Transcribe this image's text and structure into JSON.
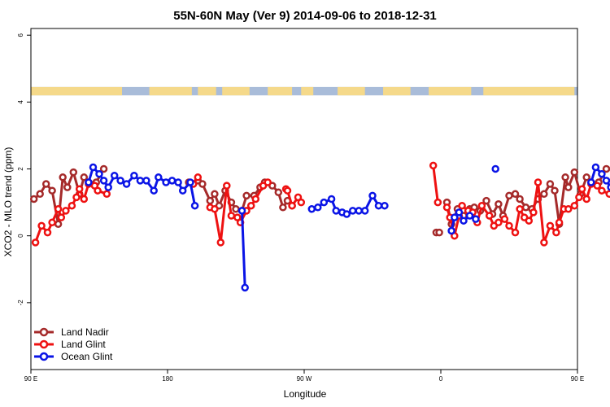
{
  "chart_data": {
    "type": "line",
    "title": "55N-60N May (Ver 9)   2014-09-06 to 2018-12-31",
    "xlabel": "Longitude",
    "ylabel": "XCO2 - MLO trend (ppm)",
    "xlim": [
      90,
      450
    ],
    "ylim": [
      -4,
      6.2
    ],
    "x_ticks": [
      {
        "value": 90,
        "label": "90 E"
      },
      {
        "value": 180,
        "label": "180"
      },
      {
        "value": 270,
        "label": "90 W"
      },
      {
        "value": 360,
        "label": "0"
      },
      {
        "value": 450,
        "label": "90 E"
      },
      {
        "value": 540,
        "label": "180"
      }
    ],
    "y_ticks": [
      {
        "value": -2,
        "label": "-2"
      },
      {
        "value": 0,
        "label": "0"
      },
      {
        "value": 2,
        "label": "2"
      },
      {
        "value": 4,
        "label": "4"
      },
      {
        "value": 6,
        "label": "6"
      }
    ],
    "grid": false,
    "legend_position": "bottom-left",
    "land_mask_band": {
      "y_range": [
        4.2,
        4.45
      ],
      "ocean_color": "#A9BCD9",
      "land_color": "#F5D98A"
    },
    "series": [
      {
        "name": "Land Nadir",
        "color": "#A52A2A",
        "segments": [
          [
            [
              92,
              1.1
            ],
            [
              96,
              1.25
            ],
            [
              100,
              1.55
            ],
            [
              104,
              1.35
            ],
            [
              108,
              0.35
            ],
            [
              111,
              1.75
            ],
            [
              114,
              1.45
            ],
            [
              118,
              1.9
            ],
            [
              122,
              1.25
            ],
            [
              125,
              1.75
            ],
            [
              128,
              1.6
            ],
            [
              133,
              1.6
            ],
            [
              138,
              2.0
            ]
          ],
          [
            [
              194,
              1.6
            ],
            [
              200,
              1.65
            ],
            [
              203,
              1.55
            ],
            [
              208,
              1.05
            ],
            [
              211,
              1.25
            ],
            [
              214,
              0.9
            ],
            [
              218,
              1.35
            ],
            [
              222,
              1.0
            ],
            [
              225,
              0.8
            ],
            [
              229,
              0.75
            ],
            [
              232,
              1.2
            ],
            [
              237,
              1.2
            ],
            [
              241,
              1.45
            ],
            [
              244,
              1.6
            ]
          ],
          [
            [
              249,
              1.5
            ],
            [
              253,
              1.3
            ],
            [
              256,
              0.85
            ],
            [
              259,
              1.05
            ],
            [
              262,
              0.9
            ]
          ],
          [
            [
              357,
              0.1
            ],
            [
              359,
              0.1
            ]
          ],
          [
            [
              364,
              1.0
            ],
            [
              367,
              0.35
            ],
            [
              371,
              0.8
            ],
            [
              375,
              0.6
            ],
            [
              379,
              0.8
            ],
            [
              382,
              0.85
            ],
            [
              386,
              0.75
            ],
            [
              390,
              1.05
            ],
            [
              394,
              0.65
            ],
            [
              398,
              0.95
            ],
            [
              401,
              0.6
            ],
            [
              405,
              1.2
            ],
            [
              409,
              1.25
            ],
            [
              412,
              1.1
            ],
            [
              416,
              0.85
            ],
            [
              420,
              0.8
            ],
            [
              424,
              1.1
            ],
            [
              428,
              1.25
            ],
            [
              432,
              1.55
            ],
            [
              435,
              1.35
            ],
            [
              438,
              0.35
            ],
            [
              442,
              1.75
            ],
            [
              444,
              1.45
            ],
            [
              448,
              1.9
            ],
            [
              452,
              1.25
            ],
            [
              456,
              1.75
            ],
            [
              459,
              1.6
            ],
            [
              464,
              1.6
            ],
            [
              469,
              2.0
            ]
          ]
        ]
      },
      {
        "name": "Land Glint",
        "color": "#EE1111",
        "segments": [
          [
            [
              93,
              -0.2
            ],
            [
              97,
              0.3
            ],
            [
              101,
              0.1
            ],
            [
              104,
              0.4
            ],
            [
              108,
              0.8
            ],
            [
              110,
              0.55
            ],
            [
              113,
              0.75
            ],
            [
              117,
              0.9
            ],
            [
              120,
              1.15
            ],
            [
              122,
              1.4
            ],
            [
              125,
              1.1
            ],
            [
              128,
              1.55
            ],
            [
              132,
              1.5
            ],
            [
              134,
              1.35
            ],
            [
              140,
              1.25
            ]
          ],
          [
            [
              197,
              1.55
            ],
            [
              200,
              1.75
            ]
          ],
          [
            [
              208,
              0.85
            ],
            [
              211,
              0.8
            ],
            [
              215,
              -0.2
            ],
            [
              219,
              1.5
            ],
            [
              222,
              0.6
            ],
            [
              226,
              0.55
            ],
            [
              228,
              0.4
            ],
            [
              232,
              0.75
            ],
            [
              235,
              0.9
            ],
            [
              238,
              1.1
            ],
            [
              243,
              1.5
            ],
            [
              246,
              1.6
            ]
          ],
          [
            [
              258,
              1.4
            ],
            [
              259,
              1.35
            ],
            [
              262,
              0.9
            ],
            [
              266,
              1.15
            ],
            [
              268,
              1.0
            ]
          ],
          [
            [
              355,
              2.1
            ],
            [
              358,
              1.0
            ]
          ],
          [
            [
              364,
              0.85
            ],
            [
              366,
              0.55
            ],
            [
              369,
              0.0
            ],
            [
              372,
              0.6
            ],
            [
              374,
              0.9
            ],
            [
              378,
              0.75
            ],
            [
              381,
              0.7
            ],
            [
              384,
              0.4
            ],
            [
              387,
              0.9
            ],
            [
              392,
              0.6
            ],
            [
              395,
              0.3
            ],
            [
              398,
              0.4
            ],
            [
              402,
              0.5
            ],
            [
              405,
              0.3
            ],
            [
              409,
              0.1
            ],
            [
              412,
              0.8
            ],
            [
              415,
              0.55
            ],
            [
              418,
              0.45
            ],
            [
              421,
              0.7
            ],
            [
              424,
              1.6
            ],
            [
              428,
              -0.2
            ],
            [
              432,
              0.3
            ],
            [
              436,
              0.1
            ],
            [
              438,
              0.4
            ],
            [
              441,
              0.8
            ],
            [
              444,
              0.8
            ],
            [
              448,
              0.9
            ],
            [
              451,
              1.15
            ],
            [
              453,
              1.4
            ],
            [
              456,
              1.1
            ],
            [
              459,
              1.55
            ],
            [
              463,
              1.5
            ],
            [
              466,
              1.35
            ],
            [
              471,
              1.25
            ]
          ]
        ]
      },
      {
        "name": "Ocean Glint",
        "color": "#0A14E6",
        "segments": [
          [
            [
              128,
              1.6
            ],
            [
              131,
              2.05
            ],
            [
              135,
              1.85
            ],
            [
              138,
              1.65
            ],
            [
              141,
              1.45
            ],
            [
              145,
              1.8
            ],
            [
              149,
              1.65
            ],
            [
              153,
              1.55
            ],
            [
              158,
              1.8
            ],
            [
              162,
              1.65
            ],
            [
              166,
              1.65
            ],
            [
              171,
              1.35
            ],
            [
              174,
              1.75
            ],
            [
              179,
              1.6
            ],
            [
              183,
              1.65
            ],
            [
              187,
              1.6
            ],
            [
              190,
              1.35
            ],
            [
              195,
              1.6
            ],
            [
              198,
              0.9
            ]
          ],
          [
            [
              229,
              0.75
            ],
            [
              231,
              -1.55
            ]
          ],
          [
            [
              275,
              0.8
            ],
            [
              279,
              0.85
            ],
            [
              283,
              1.0
            ],
            [
              288,
              1.1
            ],
            [
              291,
              0.75
            ],
            [
              295,
              0.7
            ],
            [
              298,
              0.65
            ],
            [
              302,
              0.75
            ],
            [
              306,
              0.75
            ],
            [
              310,
              0.75
            ],
            [
              315,
              1.2
            ],
            [
              319,
              0.9
            ],
            [
              323,
              0.9
            ]
          ],
          [
            [
              367,
              0.15
            ],
            [
              369,
              0.55
            ],
            [
              372,
              0.7
            ],
            [
              375,
              0.45
            ],
            [
              379,
              0.6
            ],
            [
              383,
              0.5
            ]
          ],
          [
            [
              396,
              2.0
            ]
          ],
          [
            [
              459,
              1.6
            ],
            [
              462,
              2.05
            ],
            [
              466,
              1.85
            ],
            [
              469,
              1.65
            ],
            [
              472,
              1.45
            ],
            [
              476,
              1.8
            ],
            [
              480,
              1.65
            ],
            [
              484,
              1.55
            ],
            [
              489,
              1.8
            ]
          ]
        ]
      }
    ]
  }
}
